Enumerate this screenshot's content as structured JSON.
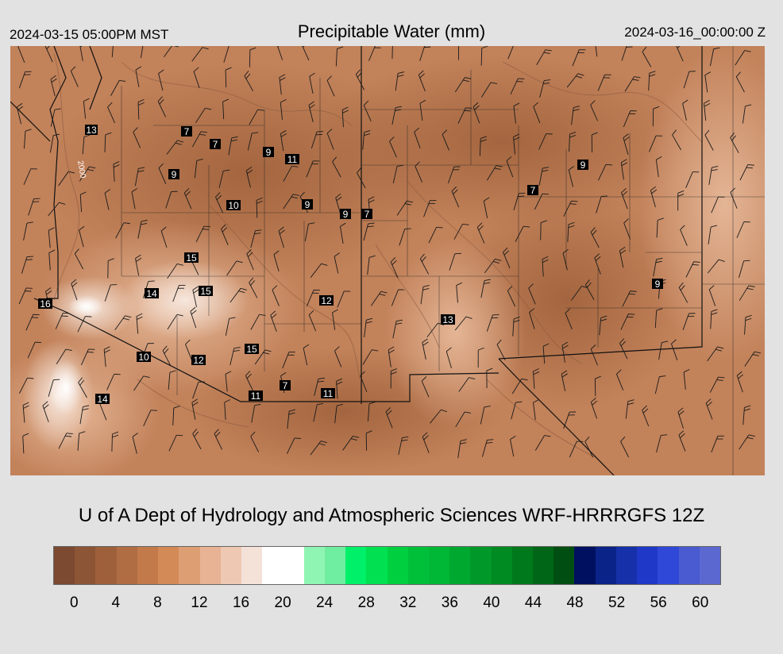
{
  "header": {
    "local_time": "2024-03-15 05:00PM MST",
    "title": "Precipitable Water (mm)",
    "valid_time": "2024-03-16_00:00:00 Z"
  },
  "footer": {
    "credit": "U of A Dept of Hydrology and Atmospheric Sciences WRF-HRRRGFS 12Z"
  },
  "colorbar": {
    "colors": [
      "#7b4a30",
      "#8c5535",
      "#9e603b",
      "#b06c43",
      "#c27a4a",
      "#d38a57",
      "#de9e74",
      "#e7b394",
      "#eec8b3",
      "#f4e2d8",
      "#ffffff",
      "#ffffff",
      "#8ff5b3",
      "#6feda0",
      "#00f06a",
      "#00e050",
      "#00d040",
      "#00c03a",
      "#00b835",
      "#00a830",
      "#009828",
      "#008a22",
      "#00781c",
      "#006617",
      "#004e12",
      "#001060",
      "#0a2388",
      "#1530a8",
      "#2038c8",
      "#3048d8",
      "#4a5ad0",
      "#5a68d0"
    ],
    "tick_labels": [
      "0",
      "4",
      "8",
      "12",
      "16",
      "20",
      "24",
      "28",
      "32",
      "36",
      "40",
      "44",
      "48",
      "52",
      "56",
      "60"
    ]
  },
  "stations": [
    {
      "id": "s1",
      "value": "13"
    },
    {
      "id": "s2",
      "value": "7"
    },
    {
      "id": "s3",
      "value": "7"
    },
    {
      "id": "s4",
      "value": "9"
    },
    {
      "id": "s5",
      "value": "11"
    },
    {
      "id": "s6",
      "value": "9"
    },
    {
      "id": "s7",
      "value": "10"
    },
    {
      "id": "s8",
      "value": "9"
    },
    {
      "id": "s9",
      "value": "9"
    },
    {
      "id": "s10",
      "value": "7"
    },
    {
      "id": "s11",
      "value": "15"
    },
    {
      "id": "s12",
      "value": "15"
    },
    {
      "id": "s13",
      "value": "14"
    },
    {
      "id": "s14",
      "value": "12"
    },
    {
      "id": "s15",
      "value": "16"
    },
    {
      "id": "s16",
      "value": "15"
    },
    {
      "id": "s17",
      "value": "12"
    },
    {
      "id": "s18",
      "value": "10"
    },
    {
      "id": "s19",
      "value": "7"
    },
    {
      "id": "s20",
      "value": "11"
    },
    {
      "id": "s21",
      "value": "11"
    },
    {
      "id": "s22",
      "value": "14"
    },
    {
      "id": "s23",
      "value": "13"
    },
    {
      "id": "s24",
      "value": "7"
    },
    {
      "id": "s25",
      "value": "9"
    },
    {
      "id": "s26",
      "value": "9"
    }
  ],
  "contour_label": "2000"
}
